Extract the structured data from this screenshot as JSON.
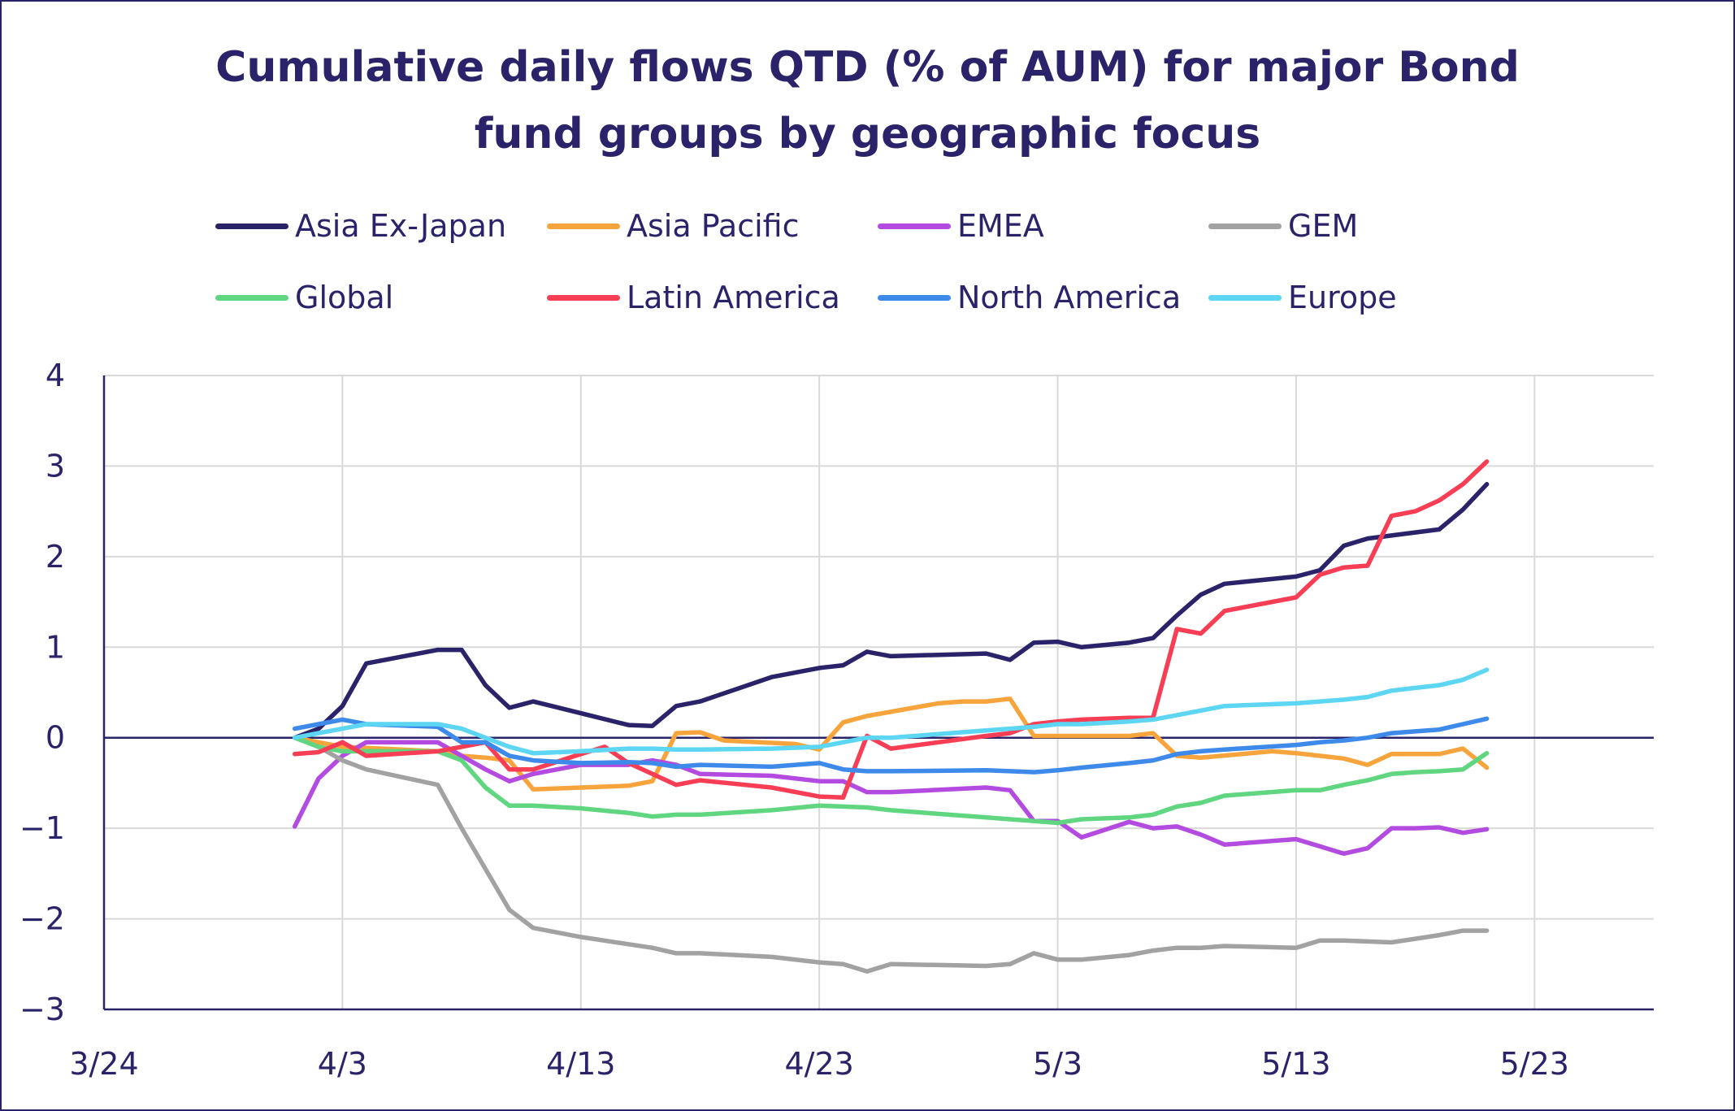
{
  "chart_data": {
    "type": "line",
    "title_lines": [
      "Cumulative daily flows QTD (% of AUM) for major Bond",
      "fund groups by geographic focus"
    ],
    "xlabel": "",
    "ylabel": "",
    "x_ticks": [
      "3/24",
      "4/3",
      "4/13",
      "4/23",
      "5/3",
      "5/13",
      "5/23"
    ],
    "x_tick_values": [
      0,
      10,
      20,
      30,
      40,
      50,
      60
    ],
    "xlim": [
      0,
      65
    ],
    "ylim": [
      -3,
      4
    ],
    "y_ticks": [
      "4",
      "3",
      "2",
      "1",
      "0",
      "−1",
      "−2",
      "−3"
    ],
    "y_tick_values": [
      4,
      3,
      2,
      1,
      0,
      -1,
      -2,
      -3
    ],
    "grid": true,
    "legend_position": "top",
    "series": [
      {
        "name": "Asia Ex-Japan",
        "color": "#2a2369",
        "x": [
          8,
          9,
          10,
          11,
          14,
          15,
          16,
          17,
          18,
          20,
          22,
          23,
          24,
          25,
          28,
          30,
          31,
          32,
          33,
          37,
          38,
          39,
          40,
          41,
          43,
          44,
          45,
          46,
          47,
          50,
          51,
          52,
          53,
          56,
          57,
          58
        ],
        "y": [
          0.0,
          0.1,
          0.35,
          0.82,
          0.97,
          0.97,
          0.58,
          0.33,
          0.4,
          0.27,
          0.14,
          0.13,
          0.35,
          0.4,
          0.67,
          0.77,
          0.8,
          0.95,
          0.9,
          0.93,
          0.86,
          1.05,
          1.06,
          1.0,
          1.05,
          1.1,
          1.35,
          1.58,
          1.7,
          1.78,
          1.85,
          2.12,
          2.2,
          2.3,
          2.52,
          2.8
        ]
      },
      {
        "name": "Asia Pacific",
        "color": "#f8a43c",
        "x": [
          8,
          9,
          10,
          14,
          15,
          16,
          17,
          18,
          20,
          22,
          23,
          24,
          25,
          26,
          29,
          30,
          31,
          32,
          35,
          36,
          37,
          38,
          39,
          40,
          42,
          43,
          44,
          45,
          46,
          49,
          50,
          51,
          52,
          53,
          54,
          55,
          56,
          57,
          58
        ],
        "y": [
          0.0,
          -0.05,
          -0.1,
          -0.15,
          -0.2,
          -0.22,
          -0.25,
          -0.57,
          -0.55,
          -0.53,
          -0.48,
          0.05,
          0.06,
          -0.03,
          -0.07,
          -0.13,
          0.17,
          0.24,
          0.38,
          0.4,
          0.4,
          0.43,
          0.02,
          0.02,
          0.02,
          0.02,
          0.05,
          -0.2,
          -0.22,
          -0.15,
          -0.17,
          -0.2,
          -0.23,
          -0.3,
          -0.18,
          -0.18,
          -0.18,
          -0.12,
          -0.33
        ]
      },
      {
        "name": "EMEA",
        "color": "#b34be0",
        "x": [
          8,
          9,
          10,
          11,
          14,
          15,
          16,
          17,
          18,
          20,
          22,
          23,
          24,
          25,
          28,
          30,
          31,
          32,
          33,
          37,
          38,
          39,
          40,
          41,
          43,
          44,
          45,
          46,
          47,
          50,
          51,
          52,
          53,
          54,
          55,
          56,
          57,
          58
        ],
        "y": [
          -0.98,
          -0.45,
          -0.2,
          -0.05,
          -0.05,
          -0.2,
          -0.35,
          -0.48,
          -0.4,
          -0.3,
          -0.3,
          -0.25,
          -0.3,
          -0.4,
          -0.42,
          -0.48,
          -0.48,
          -0.6,
          -0.6,
          -0.55,
          -0.58,
          -0.92,
          -0.92,
          -1.1,
          -0.93,
          -1.0,
          -0.98,
          -1.07,
          -1.18,
          -1.12,
          -1.2,
          -1.28,
          -1.22,
          -1.0,
          -1.0,
          -0.99,
          -1.05,
          -1.01
        ]
      },
      {
        "name": "GEM",
        "color": "#a2a2a2",
        "x": [
          8,
          9,
          10,
          11,
          14,
          15,
          16,
          17,
          18,
          20,
          22,
          23,
          24,
          25,
          28,
          30,
          31,
          32,
          33,
          37,
          38,
          39,
          40,
          41,
          43,
          44,
          45,
          46,
          47,
          50,
          51,
          52,
          53,
          54,
          55,
          56,
          57,
          58
        ],
        "y": [
          0.0,
          -0.1,
          -0.25,
          -0.35,
          -0.52,
          -1.0,
          -1.45,
          -1.9,
          -2.1,
          -2.2,
          -2.28,
          -2.32,
          -2.38,
          -2.38,
          -2.42,
          -2.48,
          -2.5,
          -2.58,
          -2.5,
          -2.52,
          -2.5,
          -2.38,
          -2.45,
          -2.45,
          -2.4,
          -2.35,
          -2.32,
          -2.32,
          -2.3,
          -2.32,
          -2.24,
          -2.24,
          -2.25,
          -2.26,
          -2.22,
          -2.18,
          -2.13,
          -2.13
        ]
      },
      {
        "name": "Global",
        "color": "#5fd67f",
        "x": [
          8,
          9,
          10,
          11,
          14,
          15,
          16,
          17,
          18,
          20,
          22,
          23,
          24,
          25,
          28,
          30,
          31,
          32,
          33,
          37,
          38,
          39,
          40,
          41,
          43,
          44,
          45,
          46,
          47,
          50,
          51,
          52,
          53,
          54,
          55,
          56,
          57,
          58
        ],
        "y": [
          0.0,
          -0.1,
          -0.15,
          -0.15,
          -0.15,
          -0.25,
          -0.55,
          -0.75,
          -0.75,
          -0.78,
          -0.83,
          -0.87,
          -0.85,
          -0.85,
          -0.8,
          -0.75,
          -0.76,
          -0.77,
          -0.8,
          -0.88,
          -0.9,
          -0.92,
          -0.94,
          -0.9,
          -0.88,
          -0.85,
          -0.76,
          -0.72,
          -0.64,
          -0.58,
          -0.58,
          -0.52,
          -0.47,
          -0.4,
          -0.38,
          -0.37,
          -0.35,
          -0.17
        ]
      },
      {
        "name": "Latin America",
        "color": "#f73e55",
        "x": [
          8,
          9,
          10,
          11,
          14,
          15,
          16,
          17,
          18,
          20,
          21,
          22,
          23,
          24,
          25,
          28,
          30,
          31,
          32,
          33,
          37,
          38,
          39,
          40,
          41,
          43,
          44,
          45,
          46,
          47,
          50,
          51,
          52,
          53,
          54,
          55,
          56,
          57,
          58
        ],
        "y": [
          -0.18,
          -0.16,
          -0.05,
          -0.2,
          -0.15,
          -0.1,
          -0.05,
          -0.35,
          -0.35,
          -0.18,
          -0.1,
          -0.28,
          -0.4,
          -0.52,
          -0.47,
          -0.55,
          -0.65,
          -0.66,
          0.02,
          -0.12,
          0.02,
          0.05,
          0.15,
          0.18,
          0.2,
          0.22,
          0.22,
          1.2,
          1.15,
          1.4,
          1.55,
          1.8,
          1.88,
          1.9,
          2.45,
          2.5,
          2.62,
          2.8,
          3.05
        ]
      },
      {
        "name": "North America",
        "color": "#3e8aeb",
        "x": [
          8,
          9,
          10,
          11,
          14,
          15,
          16,
          17,
          18,
          20,
          22,
          23,
          24,
          25,
          28,
          30,
          31,
          32,
          33,
          37,
          38,
          39,
          40,
          41,
          43,
          44,
          45,
          46,
          47,
          50,
          51,
          52,
          53,
          54,
          55,
          56,
          57,
          58
        ],
        "y": [
          0.1,
          0.15,
          0.2,
          0.15,
          0.12,
          -0.05,
          -0.05,
          -0.2,
          -0.25,
          -0.28,
          -0.27,
          -0.28,
          -0.32,
          -0.3,
          -0.32,
          -0.28,
          -0.35,
          -0.37,
          -0.37,
          -0.36,
          -0.37,
          -0.38,
          -0.36,
          -0.33,
          -0.28,
          -0.25,
          -0.18,
          -0.15,
          -0.13,
          -0.08,
          -0.05,
          -0.03,
          0.0,
          0.05,
          0.07,
          0.09,
          0.15,
          0.21
        ]
      },
      {
        "name": "Europe",
        "color": "#5cd6f2",
        "x": [
          8,
          9,
          10,
          11,
          14,
          15,
          16,
          17,
          18,
          20,
          22,
          23,
          24,
          25,
          28,
          30,
          31,
          32,
          33,
          37,
          38,
          39,
          40,
          41,
          43,
          44,
          45,
          46,
          47,
          50,
          51,
          52,
          53,
          54,
          55,
          56,
          57,
          58
        ],
        "y": [
          0.0,
          0.05,
          0.1,
          0.15,
          0.15,
          0.1,
          0.0,
          -0.1,
          -0.17,
          -0.15,
          -0.12,
          -0.12,
          -0.13,
          -0.13,
          -0.12,
          -0.1,
          -0.05,
          0.0,
          0.0,
          0.08,
          0.1,
          0.12,
          0.15,
          0.15,
          0.18,
          0.2,
          0.25,
          0.3,
          0.35,
          0.38,
          0.4,
          0.42,
          0.45,
          0.52,
          0.55,
          0.58,
          0.64,
          0.75
        ]
      }
    ]
  }
}
